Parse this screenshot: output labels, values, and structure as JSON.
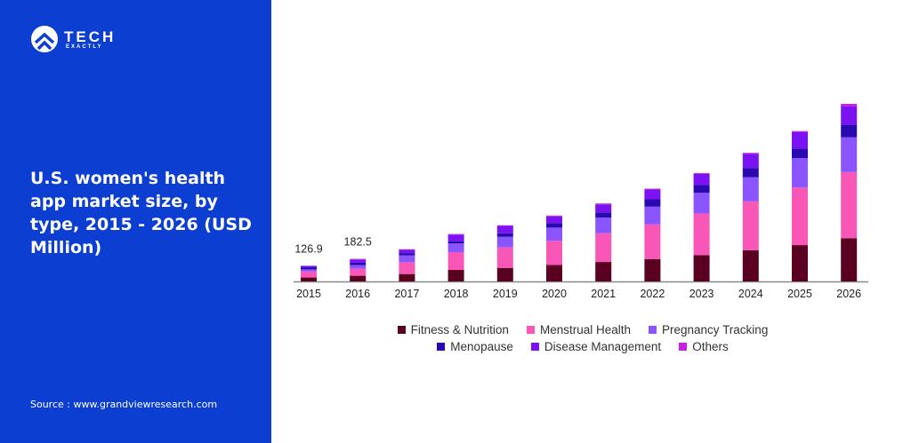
{
  "brand": {
    "name": "TECH",
    "sub": "EXACTLY"
  },
  "title": "U.S. women's health app market size, by type, 2015 - 2026 (USD Million)",
  "source": "Source : www.grandviewresearch.com",
  "chart_data": {
    "type": "bar",
    "stacked": true,
    "title": "U.S. women's health app market size, by type, 2015 - 2026 (USD Million)",
    "categories": [
      "2015",
      "2016",
      "2017",
      "2018",
      "2019",
      "2020",
      "2021",
      "2022",
      "2023",
      "2024",
      "2025",
      "2026"
    ],
    "data_labels": {
      "2015": "126.9",
      "2016": "182.5"
    },
    "grid": false,
    "legend": "bottom",
    "series": [
      {
        "name": "Fitness & Nutrition",
        "color": "#5a0020",
        "values": [
          32,
          46,
          60,
          94,
          110,
          134,
          158,
          182,
          214,
          254,
          295,
          350
        ]
      },
      {
        "name": "Menstrual Health",
        "color": "#f857b8",
        "values": [
          49,
          58,
          96,
          144,
          166,
          197,
          233,
          281,
          338,
          396,
          468,
          538
        ]
      },
      {
        "name": "Pregnancy Tracking",
        "color": "#8a55ff",
        "values": [
          17,
          29,
          55,
          70,
          86,
          106,
          127,
          144,
          168,
          197,
          238,
          283
        ]
      },
      {
        "name": "Menopause",
        "color": "#2a0ab0",
        "values": [
          17,
          19,
          19,
          19,
          29,
          36,
          43,
          60,
          62,
          72,
          79,
          103
        ]
      },
      {
        "name": "Disease Management",
        "color": "#7a12f2",
        "values": [
          11,
          26,
          26,
          53,
          60,
          55,
          65,
          79,
          91,
          118,
          134,
          149
        ]
      },
      {
        "name": "Others",
        "color": "#c81ee6",
        "values": [
          1,
          5,
          5,
          5,
          5,
          7,
          7,
          7,
          7,
          7,
          7,
          19
        ]
      }
    ]
  }
}
